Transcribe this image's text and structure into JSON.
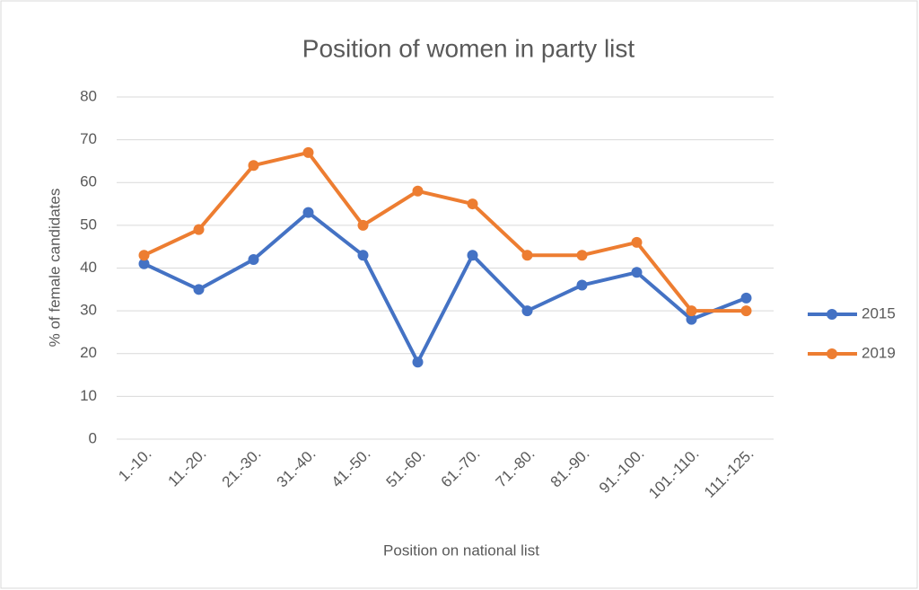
{
  "chart_data": {
    "type": "line",
    "title": "Position of women in party list",
    "x_label": "Position on national list",
    "y_label": "% of female candidates",
    "categories": [
      "1.-10.",
      "11.-20.",
      "21.-30.",
      "31.-40.",
      "41.-50.",
      "51.-60.",
      "61.-70.",
      "71.-80.",
      "81.-90.",
      "91.-100.",
      "101.-110.",
      "111.-125."
    ],
    "series": [
      {
        "name": "2015",
        "color": "#4472c4",
        "values": [
          41,
          35,
          42,
          53,
          43,
          18,
          43,
          30,
          36,
          39,
          28,
          33
        ]
      },
      {
        "name": "2019",
        "color": "#ed7d31",
        "values": [
          43,
          49,
          64,
          67,
          50,
          58,
          55,
          43,
          43,
          46,
          30,
          30
        ]
      }
    ],
    "ylim": [
      0,
      80
    ],
    "yticks": [
      0,
      10,
      20,
      30,
      40,
      50,
      60,
      70,
      80
    ],
    "grid": true,
    "legend": "right"
  }
}
